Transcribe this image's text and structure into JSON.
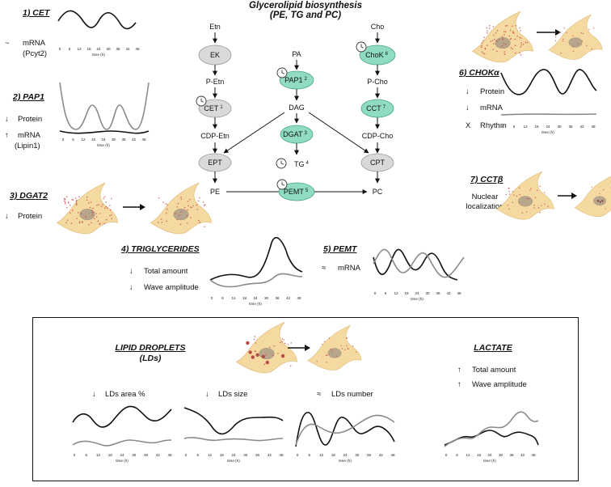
{
  "title": {
    "line1": "Glycerolipid biosynthesis",
    "line2": "(PE, TG and PC)"
  },
  "pathway": {
    "etn": "Etn",
    "ek": "EK",
    "p_etn": "P-Etn",
    "cet": "CET",
    "cet_sup": "1",
    "cdp_etn": "CDP-Etn",
    "ept": "EPT",
    "pe": "PE",
    "pa": "PA",
    "pap1": "PAP1",
    "pap1_sup": "2",
    "dag": "DAG",
    "dgat": "DGAT",
    "dgat_sup": "3",
    "tg": "TG",
    "tg_sup": "4",
    "pemt": "PEMT",
    "pemt_sup": "5",
    "cho": "Cho",
    "chok": "ChoK",
    "chok_sup": "6",
    "p_cho": "P-Cho",
    "cct": "CCT",
    "cct_sup": "7",
    "cdp_cho": "CDP-Cho",
    "cpt": "CPT",
    "pc": "PC"
  },
  "colors": {
    "teal_node": "#8fdcc0",
    "grey_node": "#d9d9d9",
    "cell_fill": "#f4d9a0",
    "cell_dots": "#c94b4b"
  },
  "axis": {
    "ticks": [
      "0",
      "6",
      "12",
      "18",
      "24",
      "30",
      "36",
      "42",
      "48"
    ],
    "label": "time (h)"
  },
  "panels": {
    "cet": {
      "title": "1) CET",
      "sym1": "~",
      "line1": "mRNA",
      "line2": "(Pcyt2)"
    },
    "pap1": {
      "title": "2) PAP1",
      "sym1": "↓",
      "line1": "Protein",
      "sym2": "↑",
      "line2": "mRNA",
      "line3": "(Lipin1)"
    },
    "dgat2": {
      "title": "3) DGAT2",
      "sym1": "↓",
      "line1": "Protein"
    },
    "tg": {
      "title": "4) TRIGLYCERIDES",
      "sym1": "↓",
      "line1": "Total amount",
      "sym2": "↓",
      "line2": "Wave amplitude"
    },
    "pemt": {
      "title": "5) PEMT",
      "sym1": "≈",
      "line1": "mRNA"
    },
    "chok": {
      "title": "6) CHOKα",
      "sym1": "↓",
      "line1": "Protein",
      "sym2": "↓",
      "line2": "mRNA",
      "sym3": "X",
      "line3": "Rhythm"
    },
    "cctb": {
      "title": "7) CCTβ",
      "line1": "Nuclear",
      "line2": "localization"
    },
    "ld": {
      "title1": "LIPID DROPLETS",
      "title2": "(LDs)",
      "m1_sym": "↓",
      "m1": "LDs area %",
      "m2_sym": "↓",
      "m2": "LDs size",
      "m3_sym": "≈",
      "m3": "LDs number"
    },
    "lactate": {
      "title": "LACTATE",
      "sym1": "↑",
      "line1": "Total amount",
      "sym2": "↑",
      "line2": "Wave amplitude"
    }
  }
}
